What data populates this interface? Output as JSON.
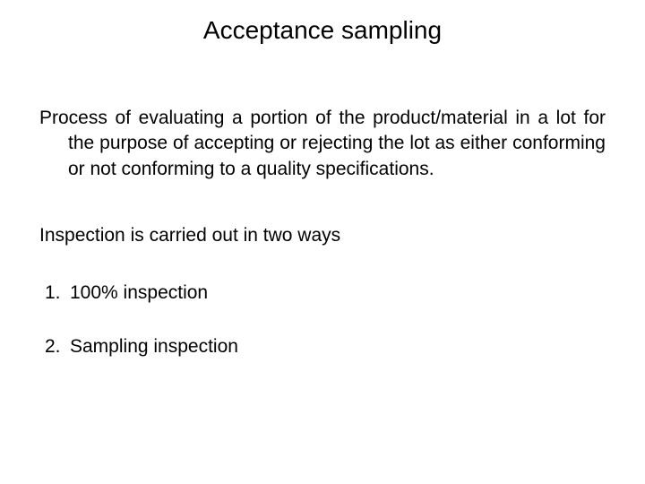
{
  "colors": {
    "background": "#ffffff",
    "text": "#000000"
  },
  "typography": {
    "title_fontsize": 28,
    "body_fontsize": 21,
    "font_family": "Tahoma, Verdana, Segoe UI, sans-serif"
  },
  "title": "Acceptance sampling",
  "definition": "Process of evaluating a portion of the product/material in a lot for the purpose of accepting or rejecting the lot as either conforming or not conforming to a quality specifications.",
  "subheading": "Inspection is carried out in two ways",
  "list": [
    {
      "number": "1.",
      "text": "100% inspection"
    },
    {
      "number": "2.",
      "text": "Sampling inspection"
    }
  ]
}
